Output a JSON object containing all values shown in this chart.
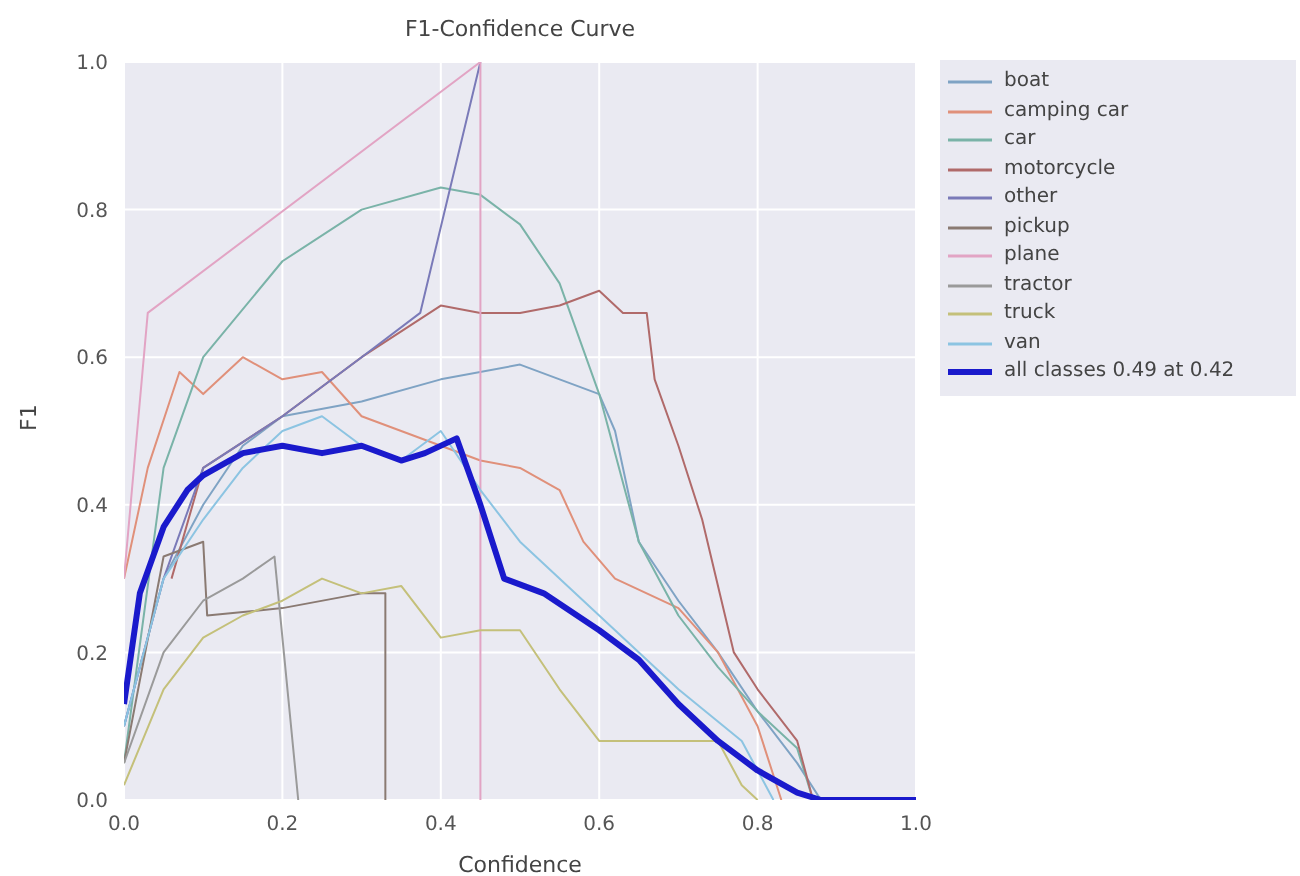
{
  "chart_data": {
    "type": "line",
    "title": "F1-Confidence Curve",
    "xlabel": "Confidence",
    "ylabel": "F1",
    "xlim": [
      0,
      1
    ],
    "ylim": [
      0,
      1
    ],
    "xticks": [
      {
        "value": 0,
        "label": "0.0"
      },
      0.2,
      0.4,
      0.6,
      0.8,
      {
        "value": 1,
        "label": "1.0"
      }
    ],
    "yticks": [
      {
        "value": 0,
        "label": "0.0"
      },
      0.2,
      0.4,
      0.6,
      0.8,
      {
        "value": 1,
        "label": "1.0"
      }
    ],
    "grid": true,
    "legend": "top right",
    "marker": "none",
    "line_style": "solid",
    "series": [
      {
        "name": "boat",
        "color": "#7fa3c4",
        "x": [
          0,
          0.05,
          0.1,
          0.15,
          0.2,
          0.3,
          0.4,
          0.5,
          0.55,
          0.6,
          0.62,
          0.65,
          0.7,
          0.75,
          0.8,
          0.85,
          0.88
        ],
        "values": [
          0.1,
          0.3,
          0.4,
          0.48,
          0.52,
          0.54,
          0.57,
          0.59,
          0.57,
          0.55,
          0.5,
          0.35,
          0.27,
          0.2,
          0.12,
          0.05,
          0
        ]
      },
      {
        "name": "camping car",
        "color": "#e0907a",
        "x": [
          0,
          0.03,
          0.07,
          0.1,
          0.15,
          0.2,
          0.25,
          0.3,
          0.35,
          0.4,
          0.45,
          0.5,
          0.55,
          0.58,
          0.62,
          0.7,
          0.75,
          0.8,
          0.83
        ],
        "values": [
          0.3,
          0.45,
          0.58,
          0.55,
          0.6,
          0.57,
          0.58,
          0.52,
          0.5,
          0.48,
          0.46,
          0.45,
          0.42,
          0.35,
          0.3,
          0.26,
          0.2,
          0.1,
          0
        ]
      },
      {
        "name": "car",
        "color": "#7ab3a8",
        "x": [
          0,
          0.05,
          0.1,
          0.2,
          0.3,
          0.4,
          0.45,
          0.5,
          0.55,
          0.6,
          0.65,
          0.7,
          0.75,
          0.8,
          0.85,
          0.87
        ],
        "values": [
          0.05,
          0.45,
          0.6,
          0.73,
          0.8,
          0.83,
          0.82,
          0.78,
          0.7,
          0.55,
          0.35,
          0.25,
          0.18,
          0.12,
          0.07,
          0
        ]
      },
      {
        "name": "motorcycle",
        "color": "#b06a6a",
        "x": [
          0.06,
          0.1,
          0.2,
          0.3,
          0.4,
          0.45,
          0.5,
          0.55,
          0.6,
          0.63,
          0.66,
          0.67,
          0.7,
          0.73,
          0.77,
          0.8,
          0.85,
          0.87
        ],
        "values": [
          0.3,
          0.45,
          0.52,
          0.6,
          0.67,
          0.66,
          0.66,
          0.67,
          0.69,
          0.66,
          0.66,
          0.57,
          0.48,
          0.38,
          0.2,
          0.15,
          0.08,
          0
        ]
      },
      {
        "name": "other",
        "color": "#7a7ab8",
        "x": [
          0,
          0.05,
          0.1,
          0.2,
          0.3,
          0.374,
          0.45
        ],
        "values": [
          0.1,
          0.3,
          0.45,
          0.52,
          0.6,
          0.66,
          1.0
        ]
      },
      {
        "name": "pickup",
        "color": "#8a7a72",
        "x": [
          0,
          0.05,
          0.1,
          0.105,
          0.2,
          0.3,
          0.33,
          0.33
        ],
        "values": [
          0.05,
          0.33,
          0.35,
          0.25,
          0.26,
          0.28,
          0.28,
          0
        ]
      },
      {
        "name": "plane",
        "color": "#e2a4c4",
        "x": [
          0,
          0.03,
          0.45,
          0.45
        ],
        "values": [
          0.3,
          0.66,
          1.0,
          0
        ]
      },
      {
        "name": "tractor",
        "color": "#9a9a9a",
        "x": [
          0,
          0.05,
          0.1,
          0.15,
          0.19,
          0.22
        ],
        "values": [
          0.05,
          0.2,
          0.27,
          0.3,
          0.33,
          0
        ]
      },
      {
        "name": "truck",
        "color": "#c4c07a",
        "x": [
          0,
          0.05,
          0.1,
          0.15,
          0.2,
          0.25,
          0.3,
          0.35,
          0.4,
          0.45,
          0.5,
          0.55,
          0.6,
          0.75,
          0.78,
          0.8
        ],
        "values": [
          0.02,
          0.15,
          0.22,
          0.25,
          0.27,
          0.3,
          0.28,
          0.29,
          0.22,
          0.23,
          0.23,
          0.15,
          0.08,
          0.08,
          0.02,
          0
        ]
      },
      {
        "name": "van",
        "color": "#8cc4e2",
        "x": [
          0,
          0.05,
          0.1,
          0.15,
          0.2,
          0.25,
          0.3,
          0.35,
          0.4,
          0.45,
          0.5,
          0.6,
          0.7,
          0.78,
          0.82
        ],
        "values": [
          0.1,
          0.3,
          0.38,
          0.45,
          0.5,
          0.52,
          0.48,
          0.46,
          0.5,
          0.42,
          0.35,
          0.25,
          0.15,
          0.08,
          0
        ]
      },
      {
        "name": "all classes 0.49 at 0.42",
        "color": "#1a1acc",
        "x": [
          0,
          0.02,
          0.05,
          0.08,
          0.1,
          0.15,
          0.2,
          0.25,
          0.3,
          0.35,
          0.38,
          0.42,
          0.45,
          0.48,
          0.53,
          0.6,
          0.65,
          0.7,
          0.75,
          0.8,
          0.85,
          0.88,
          1.0
        ],
        "values": [
          0.13,
          0.28,
          0.37,
          0.42,
          0.44,
          0.47,
          0.48,
          0.47,
          0.48,
          0.46,
          0.47,
          0.49,
          0.4,
          0.3,
          0.28,
          0.23,
          0.19,
          0.13,
          0.08,
          0.04,
          0.01,
          0,
          0
        ]
      }
    ]
  }
}
